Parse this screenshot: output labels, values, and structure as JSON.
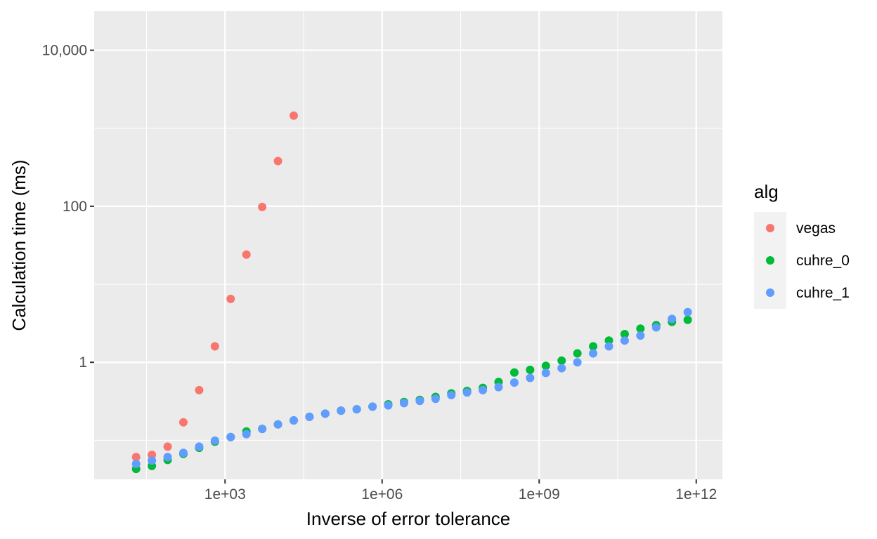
{
  "chart_data": {
    "type": "scatter",
    "title": "",
    "xlabel": "Inverse of error tolerance",
    "ylabel": "Calculation time (ms)",
    "x_scale": "log10",
    "y_scale": "log10",
    "xlim": [
      3.16,
      3160000000000.0
    ],
    "ylim": [
      0.0316,
      31623
    ],
    "x_ticks": [
      1000,
      1000000,
      1000000000,
      1000000000000
    ],
    "x_tick_labels": [
      "1e+03",
      "1e+06",
      "1e+09",
      "1e+12"
    ],
    "y_ticks": [
      1,
      100,
      10000
    ],
    "y_tick_labels": [
      "1",
      "100",
      "10,000"
    ],
    "grid": true,
    "legend": {
      "title": "alg",
      "position": "right"
    },
    "series": [
      {
        "name": "vegas",
        "color": "#F8766D",
        "x": [
          20,
          40,
          80,
          160,
          320,
          640,
          1280,
          2560,
          5120,
          10240,
          20480
        ],
        "y": [
          0.061,
          0.065,
          0.083,
          0.17,
          0.44,
          1.6,
          6.5,
          24,
          98,
          380,
          1450
        ]
      },
      {
        "name": "cuhre_0",
        "color": "#00BA38",
        "x": [
          20,
          40,
          80,
          160,
          320,
          640,
          1280,
          2560,
          5120,
          10240,
          20480,
          40960,
          81920,
          163840,
          327680,
          655360,
          1310720,
          2621440,
          5242880,
          10485760,
          20971520,
          41943040,
          83886080,
          167772160,
          335544320,
          671088640,
          1342177280,
          2684354560,
          5368709120,
          10737418240,
          21474836480,
          42949672960,
          85899345920,
          171798691840,
          343597383680,
          687194767360
        ],
        "y": [
          0.043,
          0.047,
          0.056,
          0.067,
          0.08,
          0.096,
          0.11,
          0.13,
          0.14,
          0.16,
          0.18,
          0.2,
          0.22,
          0.24,
          0.25,
          0.27,
          0.29,
          0.31,
          0.33,
          0.36,
          0.4,
          0.43,
          0.47,
          0.56,
          0.74,
          0.8,
          0.9,
          1.05,
          1.3,
          1.6,
          1.9,
          2.3,
          2.7,
          3.0,
          3.3,
          3.5
        ]
      },
      {
        "name": "cuhre_1",
        "color": "#619CFF",
        "x": [
          20,
          40,
          80,
          160,
          320,
          640,
          1280,
          2560,
          5120,
          10240,
          20480,
          40960,
          81920,
          163840,
          327680,
          655360,
          1310720,
          2621440,
          5242880,
          10485760,
          20971520,
          41943040,
          83886080,
          167772160,
          335544320,
          671088640,
          1342177280,
          2684354560,
          5368709120,
          10737418240,
          21474836480,
          42949672960,
          85899345920,
          171798691840,
          343597383680,
          687194767360
        ],
        "y": [
          0.05,
          0.055,
          0.061,
          0.069,
          0.083,
          0.099,
          0.11,
          0.12,
          0.14,
          0.16,
          0.18,
          0.2,
          0.22,
          0.24,
          0.25,
          0.27,
          0.28,
          0.3,
          0.32,
          0.34,
          0.38,
          0.41,
          0.44,
          0.48,
          0.55,
          0.63,
          0.73,
          0.84,
          1.0,
          1.3,
          1.6,
          1.9,
          2.2,
          2.8,
          3.6,
          4.4
        ]
      }
    ]
  }
}
